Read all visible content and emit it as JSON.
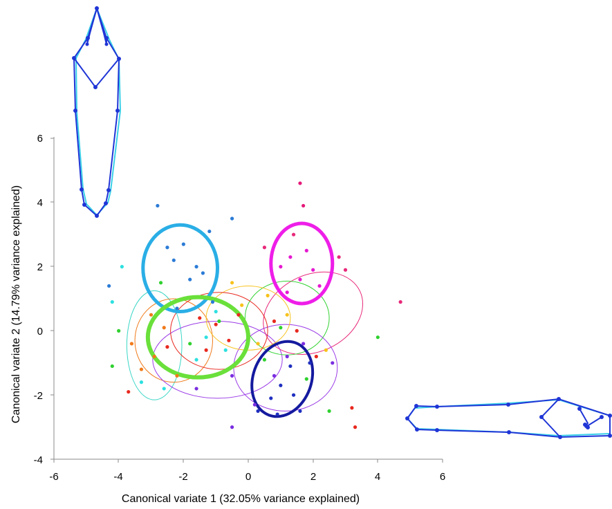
{
  "chart_data": {
    "type": "scatter",
    "title": "",
    "xlabel": "Canonical variate 1 (32.05%  variance explained)",
    "ylabel": "Canonical variate 2 (14.79%  variance explained)",
    "xlim": [
      -6,
      6
    ],
    "ylim": [
      -4,
      6
    ],
    "x_ticks": [
      "-6",
      "-4",
      "-2",
      "0",
      "2",
      "4",
      "6"
    ],
    "y_ticks": [
      "-4",
      "-2",
      "0",
      "2",
      "4",
      "6"
    ],
    "grid": false,
    "legend": "none",
    "points": [
      {
        "x": -2.3,
        "y": 2.2,
        "color": "#2b7bd6"
      },
      {
        "x": -2.0,
        "y": 2.7,
        "color": "#2b7bd6"
      },
      {
        "x": -1.6,
        "y": 2.0,
        "color": "#2b7bd6"
      },
      {
        "x": -1.4,
        "y": 1.8,
        "color": "#2b7bd6"
      },
      {
        "x": -1.2,
        "y": 3.1,
        "color": "#2b7bd6"
      },
      {
        "x": -0.5,
        "y": 3.5,
        "color": "#2b7bd6"
      },
      {
        "x": -2.5,
        "y": 2.6,
        "color": "#2b7bd6"
      },
      {
        "x": -1.8,
        "y": 1.6,
        "color": "#2b7bd6"
      },
      {
        "x": -2.8,
        "y": 3.9,
        "color": "#2b7bd6"
      },
      {
        "x": -4.3,
        "y": 1.4,
        "color": "#2b7bd6"
      },
      {
        "x": -2.2,
        "y": 0.7,
        "color": "#2b7bd6"
      },
      {
        "x": -1.1,
        "y": 0.9,
        "color": "#2b7bd6"
      },
      {
        "x": 1.6,
        "y": 4.6,
        "color": "#e6197a"
      },
      {
        "x": 1.7,
        "y": 3.9,
        "color": "#e6197a"
      },
      {
        "x": 1.4,
        "y": 3.0,
        "color": "#e8297a"
      },
      {
        "x": 2.8,
        "y": 2.3,
        "color": "#e8297a"
      },
      {
        "x": 3.0,
        "y": 1.9,
        "color": "#e8297a"
      },
      {
        "x": 4.7,
        "y": 0.9,
        "color": "#e8297a"
      },
      {
        "x": 0.5,
        "y": 2.6,
        "color": "#e8297a"
      },
      {
        "x": 1.0,
        "y": 2.0,
        "color": "#e619d0"
      },
      {
        "x": 1.3,
        "y": 2.3,
        "color": "#e619d0"
      },
      {
        "x": 1.6,
        "y": 1.6,
        "color": "#e619d0"
      },
      {
        "x": 2.0,
        "y": 1.9,
        "color": "#e619d0"
      },
      {
        "x": 1.8,
        "y": 2.5,
        "color": "#e619d0"
      },
      {
        "x": 1.2,
        "y": 1.2,
        "color": "#e619d0"
      },
      {
        "x": 2.2,
        "y": 1.4,
        "color": "#e619d0"
      },
      {
        "x": -1.5,
        "y": 0.4,
        "color": "#e8291f"
      },
      {
        "x": -1.0,
        "y": 0.2,
        "color": "#e8291f"
      },
      {
        "x": -0.6,
        "y": -0.3,
        "color": "#e8291f"
      },
      {
        "x": -1.3,
        "y": -0.6,
        "color": "#e8291f"
      },
      {
        "x": -0.3,
        "y": 0.5,
        "color": "#e8291f"
      },
      {
        "x": -2.5,
        "y": -0.5,
        "color": "#e8291f"
      },
      {
        "x": -3.7,
        "y": -1.9,
        "color": "#e8291f"
      },
      {
        "x": 2.1,
        "y": -0.8,
        "color": "#e8291f"
      },
      {
        "x": 0.8,
        "y": 0.3,
        "color": "#e8291f"
      },
      {
        "x": 1.5,
        "y": 0.0,
        "color": "#e8291f"
      },
      {
        "x": 3.2,
        "y": -2.4,
        "color": "#e8291f"
      },
      {
        "x": 3.3,
        "y": -3.0,
        "color": "#e8291f"
      },
      {
        "x": -2.9,
        "y": -0.8,
        "color": "#f07a1a"
      },
      {
        "x": -3.3,
        "y": -1.2,
        "color": "#f07a1a"
      },
      {
        "x": -2.6,
        "y": 0.1,
        "color": "#f07a1a"
      },
      {
        "x": -3.0,
        "y": 0.5,
        "color": "#f07a1a"
      },
      {
        "x": -3.6,
        "y": -0.4,
        "color": "#f07a1a"
      },
      {
        "x": -2.2,
        "y": -1.4,
        "color": "#f07a1a"
      },
      {
        "x": -0.5,
        "y": 1.5,
        "color": "#f7c21c"
      },
      {
        "x": 0.6,
        "y": 1.1,
        "color": "#f7c21c"
      },
      {
        "x": 1.2,
        "y": 0.5,
        "color": "#f7c21c"
      },
      {
        "x": -0.2,
        "y": 0.8,
        "color": "#f7c21c"
      },
      {
        "x": 0.3,
        "y": -0.4,
        "color": "#f7c21c"
      },
      {
        "x": 2.4,
        "y": -0.6,
        "color": "#f7c21c"
      },
      {
        "x": -4.0,
        "y": 0.0,
        "color": "#2fd12f"
      },
      {
        "x": -1.8,
        "y": -0.4,
        "color": "#2fd12f"
      },
      {
        "x": -0.9,
        "y": 0.3,
        "color": "#2fd12f"
      },
      {
        "x": 0.5,
        "y": -0.9,
        "color": "#2fd12f"
      },
      {
        "x": 1.0,
        "y": 0.1,
        "color": "#2fd12f"
      },
      {
        "x": 1.8,
        "y": -1.5,
        "color": "#2fd12f"
      },
      {
        "x": 4.0,
        "y": -0.2,
        "color": "#2fd12f"
      },
      {
        "x": 2.5,
        "y": -2.5,
        "color": "#2fd12f"
      },
      {
        "x": -2.7,
        "y": 1.5,
        "color": "#2fd12f"
      },
      {
        "x": -4.2,
        "y": -1.1,
        "color": "#2fd12f"
      },
      {
        "x": -3.3,
        "y": -1.6,
        "color": "#2ee0e0"
      },
      {
        "x": -4.2,
        "y": 0.9,
        "color": "#2ee0e0"
      },
      {
        "x": -1.6,
        "y": -0.9,
        "color": "#2ee0e0"
      },
      {
        "x": -0.7,
        "y": -0.6,
        "color": "#2ee0e0"
      },
      {
        "x": -2.6,
        "y": -1.8,
        "color": "#2ee0e0"
      },
      {
        "x": -1.0,
        "y": 0.6,
        "color": "#2ee0e0"
      },
      {
        "x": -1.3,
        "y": -0.2,
        "color": "#2ee0e0"
      },
      {
        "x": -3.9,
        "y": 2.0,
        "color": "#2ee0e0"
      },
      {
        "x": 0.8,
        "y": -1.4,
        "color": "#7a2ee0"
      },
      {
        "x": 1.2,
        "y": -0.8,
        "color": "#7a2ee0"
      },
      {
        "x": -0.5,
        "y": -1.4,
        "color": "#7a2ee0"
      },
      {
        "x": -1.6,
        "y": -1.8,
        "color": "#7a2ee0"
      },
      {
        "x": 1.7,
        "y": -0.4,
        "color": "#7a2ee0"
      },
      {
        "x": 2.6,
        "y": -1.0,
        "color": "#7a2ee0"
      },
      {
        "x": 0.2,
        "y": -2.3,
        "color": "#7a2ee0"
      },
      {
        "x": -0.5,
        "y": -3.0,
        "color": "#7a2ee0"
      },
      {
        "x": 0.7,
        "y": -2.1,
        "color": "#1f2fbf"
      },
      {
        "x": 1.0,
        "y": -1.7,
        "color": "#1f2fbf"
      },
      {
        "x": 1.4,
        "y": -2.0,
        "color": "#1f2fbf"
      },
      {
        "x": 1.6,
        "y": -2.5,
        "color": "#1f2fbf"
      },
      {
        "x": 1.3,
        "y": -1.1,
        "color": "#1f2fbf"
      },
      {
        "x": 0.3,
        "y": -2.5,
        "color": "#1f2fbf"
      },
      {
        "x": 1.9,
        "y": -1.0,
        "color": "#1f2fbf"
      },
      {
        "x": 0.9,
        "y": -2.6,
        "color": "#1f2fbf"
      }
    ],
    "ellipses": [
      {
        "cx": -2.1,
        "cy": 1.95,
        "rx": 1.15,
        "ry": 1.35,
        "angle": 0,
        "color": "#2aaee6",
        "width": 5
      },
      {
        "cx": 1.65,
        "cy": 2.1,
        "rx": 0.95,
        "ry": 1.25,
        "angle": 0,
        "color": "#ee1ee8",
        "width": 5
      },
      {
        "cx": -1.55,
        "cy": -0.2,
        "rx": 1.55,
        "ry": 1.25,
        "angle": 0,
        "color": "#6ae03a",
        "width": 6
      },
      {
        "cx": 1.05,
        "cy": -1.5,
        "rx": 0.9,
        "ry": 1.2,
        "angle": 20,
        "color": "#141a9e",
        "width": 4
      },
      {
        "cx": -2.9,
        "cy": -0.45,
        "rx": 0.85,
        "ry": 1.7,
        "angle": 0,
        "color": "#3ad6c6",
        "width": 1
      },
      {
        "cx": -2.3,
        "cy": -0.3,
        "rx": 1.2,
        "ry": 1.3,
        "angle": 0,
        "color": "#f07a1a",
        "width": 1
      },
      {
        "cx": -0.95,
        "cy": -0.9,
        "rx": 2.0,
        "ry": 1.2,
        "angle": 0,
        "color": "#9a3ae6",
        "width": 1
      },
      {
        "cx": 2.0,
        "cy": 0.55,
        "rx": 1.6,
        "ry": 1.2,
        "angle": -25,
        "color": "#e8297a",
        "width": 1
      },
      {
        "cx": 1.2,
        "cy": 0.4,
        "rx": 1.3,
        "ry": 1.15,
        "angle": 0,
        "color": "#2fd12f",
        "width": 1
      },
      {
        "cx": 1.15,
        "cy": -1.15,
        "rx": 1.6,
        "ry": 1.35,
        "angle": 0,
        "color": "#9a3ae6",
        "width": 1
      },
      {
        "cx": 0.0,
        "cy": 0.4,
        "rx": 1.3,
        "ry": 1.0,
        "angle": 0,
        "color": "#f7c21c",
        "width": 1
      },
      {
        "cx": -0.9,
        "cy": 0.0,
        "rx": 1.5,
        "ry": 1.2,
        "angle": 0,
        "color": "#e8291f",
        "width": 1
      }
    ]
  }
}
